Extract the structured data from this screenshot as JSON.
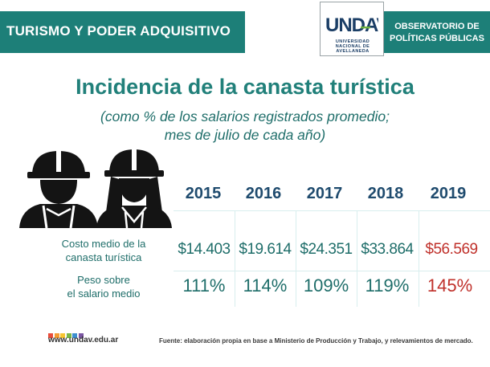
{
  "header": {
    "title": "TURISMO Y PODER ADQUISITIVO",
    "logo_text": "UNDAV",
    "logo_lines": [
      "UNIVERSIDAD",
      "NACIONAL DE",
      "AVELLANEDA"
    ],
    "observatory_lines": [
      "OBSERVATORIO DE",
      "POLÍTICAS PÚBLICAS"
    ]
  },
  "chart_data": {
    "type": "table",
    "title": "Incidencia de la canasta turística",
    "subtitle_lines": [
      "(como % de los salarios registrados promedio;",
      "mes de julio de cada año)"
    ],
    "columns": [
      "2015",
      "2016",
      "2017",
      "2018",
      "2019"
    ],
    "rows": [
      {
        "label_lines": [
          "Costo medio de la",
          "canasta turística"
        ],
        "values": [
          14403,
          19614,
          24351,
          33864,
          56569
        ],
        "display": [
          "$14.403",
          "$19.614",
          "$24.351",
          "$33.864",
          "$56.569"
        ]
      },
      {
        "label_lines": [
          "Peso sobre",
          "el salario medio"
        ],
        "values": [
          111,
          114,
          109,
          119,
          145
        ],
        "display": [
          "111%",
          "114%",
          "109%",
          "119%",
          "145%"
        ]
      }
    ],
    "highlight_column": "2019",
    "highlight_color": "#c0312b"
  },
  "colors": {
    "teal": "#1d7f78",
    "text_teal": "#1f6e6a",
    "year_blue": "#1f4b6e",
    "logo_blue": "#1b3e66",
    "logo_green": "#6db33f"
  },
  "icons": [
    "worker-male-icon",
    "worker-female-icon"
  ],
  "footer": {
    "url": "www.undav.edu.ar",
    "source": "Fuente: elaboración propia en base a Ministerio de Producción y Trabajo, y relevamientos de mercado.",
    "square_colors": [
      "#e94e3c",
      "#f39c33",
      "#f7c531",
      "#7ab648",
      "#3d8fd0",
      "#7b56a3"
    ]
  }
}
